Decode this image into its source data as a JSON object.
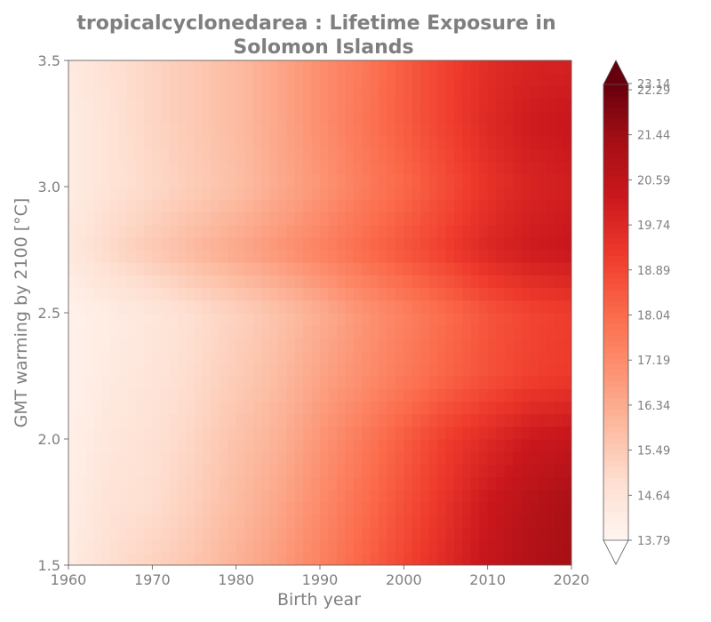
{
  "chart_data": {
    "type": "heatmap",
    "title_line1": "tropicalcyclonedarea : Lifetime Exposure in",
    "title_line2": "Solomon Islands",
    "xlabel": "Birth year",
    "ylabel": "GMT warming by 2100 [°C]",
    "xlim": [
      1960,
      2020
    ],
    "ylim": [
      1.5,
      3.5
    ],
    "x_ticks": [
      "1960",
      "1970",
      "1980",
      "1990",
      "2000",
      "2010",
      "2020"
    ],
    "y_ticks": [
      "1.5",
      "2.0",
      "2.5",
      "3.0",
      "3.5"
    ],
    "colormap": "Reds",
    "colorbar": {
      "vmin": 13.79,
      "vmax": 23.14,
      "extend": "both",
      "ticks": [
        "13.79",
        "14.64",
        "15.49",
        "16.34",
        "17.19",
        "18.04",
        "18.89",
        "19.74",
        "20.59",
        "21.44",
        "22.29",
        "23.14"
      ]
    },
    "x": [
      1960,
      1965,
      1970,
      1975,
      1980,
      1985,
      1990,
      1995,
      2000,
      2005,
      2010,
      2015,
      2020
    ],
    "y": [
      1.5,
      1.75,
      2.0,
      2.25,
      2.5,
      2.75,
      3.0,
      3.25,
      3.5
    ],
    "z": [
      [
        14.3,
        15.0,
        15.4,
        15.8,
        16.4,
        17.0,
        17.8,
        18.6,
        19.4,
        20.2,
        21.0,
        21.6,
        21.9
      ],
      [
        14.2,
        14.8,
        15.0,
        15.5,
        16.1,
        16.7,
        17.5,
        18.3,
        19.1,
        19.9,
        20.8,
        21.4,
        21.8
      ],
      [
        14.1,
        14.6,
        14.9,
        15.3,
        15.9,
        16.4,
        17.2,
        18.0,
        18.8,
        19.6,
        20.2,
        20.8,
        21.0
      ],
      [
        14.0,
        14.4,
        14.7,
        15.1,
        15.6,
        16.1,
        16.8,
        17.4,
        18.0,
        18.6,
        19.1,
        19.5,
        19.7
      ],
      [
        14.0,
        14.3,
        14.6,
        15.0,
        15.4,
        15.9,
        16.5,
        17.2,
        17.8,
        18.4,
        19.0,
        19.4,
        19.6
      ],
      [
        14.5,
        15.2,
        15.7,
        16.2,
        16.7,
        17.2,
        17.8,
        18.4,
        19.0,
        19.6,
        20.3,
        20.7,
        20.9
      ],
      [
        14.3,
        14.8,
        15.2,
        15.6,
        16.0,
        16.6,
        17.2,
        17.9,
        18.5,
        19.2,
        19.9,
        20.4,
        20.6
      ],
      [
        14.3,
        14.8,
        15.3,
        15.7,
        16.1,
        16.7,
        17.4,
        18.1,
        18.8,
        19.5,
        20.2,
        20.7,
        20.9
      ],
      [
        14.4,
        14.9,
        15.3,
        15.7,
        16.1,
        16.7,
        17.4,
        18.0,
        18.8,
        19.5,
        20.1,
        20.4,
        20.5
      ]
    ]
  }
}
